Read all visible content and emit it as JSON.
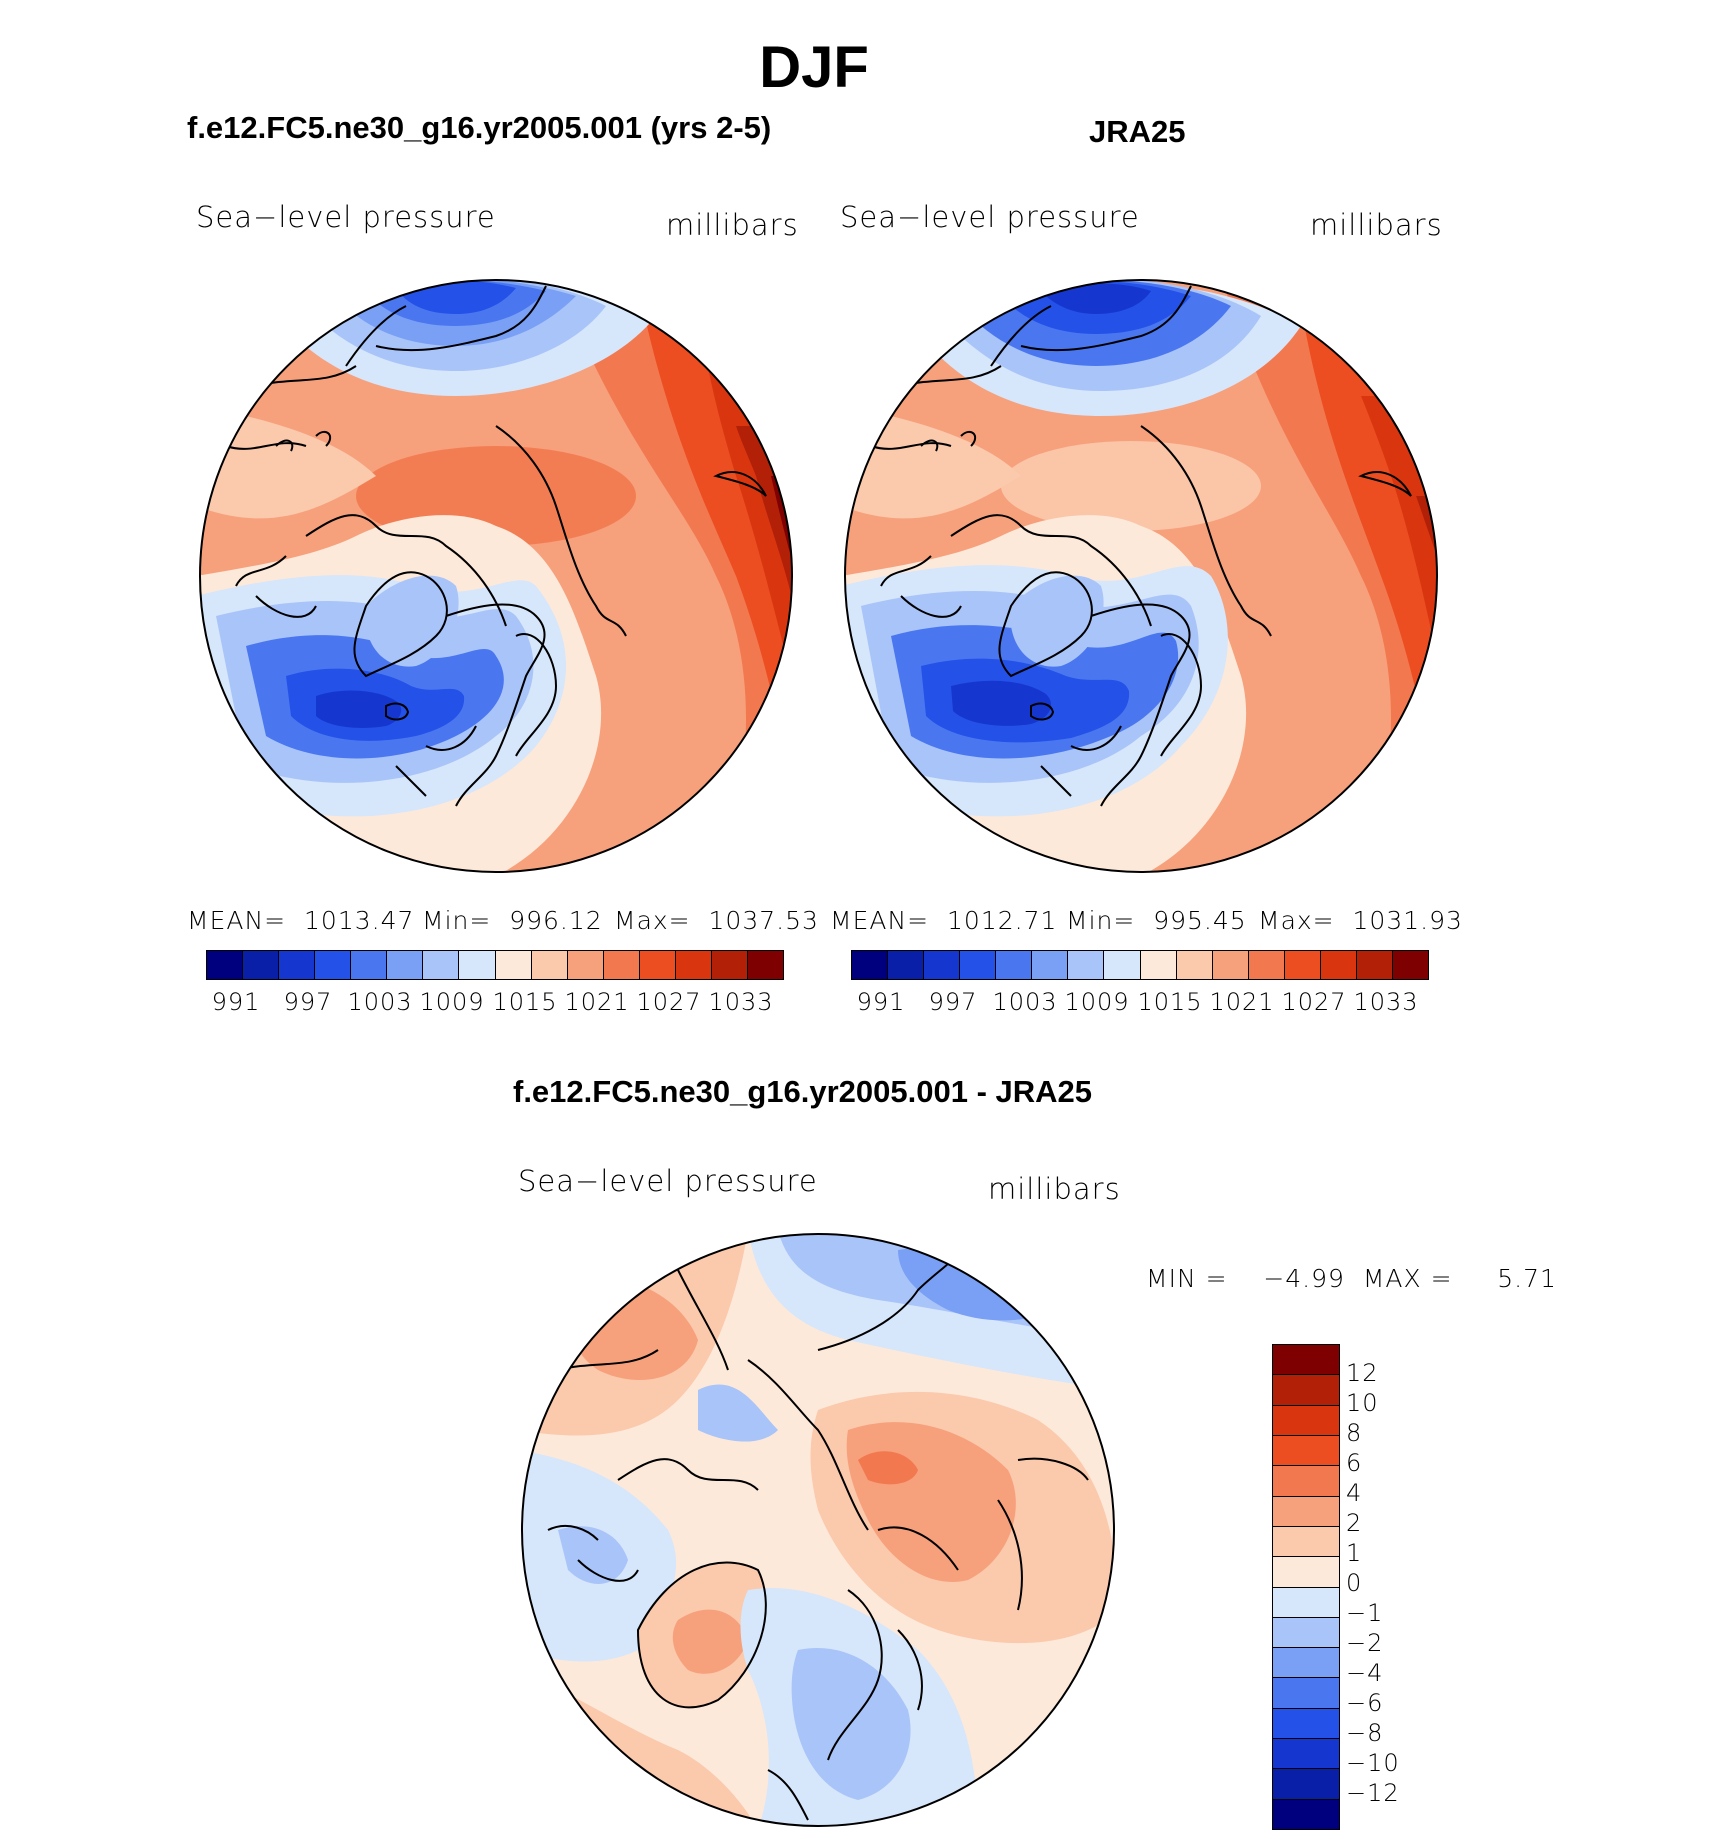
{
  "title": "DJF",
  "panels": [
    {
      "title": "f.e12.FC5.ne30_g16.yr2005.001 (yrs 2-5)",
      "left_label": "Sea−level pressure",
      "right_label": "millibars",
      "stats": {
        "mean": "MEAN=  1013.47",
        "min": "Min=  996.12",
        "max": "Max=  1037.53"
      }
    },
    {
      "title": "JRA25",
      "left_label": "Sea−level pressure",
      "right_label": "millibars",
      "stats": {
        "mean": "MEAN=  1012.71",
        "min": "Min=  995.45",
        "max": "Max=  1031.93"
      }
    },
    {
      "title": "f.e12.FC5.ne30_g16.yr2005.001 - JRA25",
      "left_label": "Sea−level pressure",
      "right_label": "millibars",
      "stats": {
        "minmax": "MIN =    −4.99  MAX =     5.71"
      }
    }
  ],
  "colorbar_horizontal": {
    "labels": [
      "991",
      "997",
      "1003",
      "1009",
      "1015",
      "1021",
      "1027",
      "1033"
    ],
    "colors": [
      "#00007f",
      "#0a1fa8",
      "#1537d0",
      "#2452e8",
      "#4a77f0",
      "#7aa0f5",
      "#a9c4f8",
      "#d6e6fb",
      "#fde9da",
      "#fbc9ac",
      "#f7a07c",
      "#f2794f",
      "#ec4e22",
      "#d93610",
      "#b32008",
      "#7f0000"
    ]
  },
  "colorbar_vertical": {
    "labels": [
      "12",
      "10",
      "8",
      "6",
      "4",
      "2",
      "1",
      "0",
      "−1",
      "−2",
      "−4",
      "−6",
      "−8",
      "−10",
      "−12"
    ],
    "colors": [
      "#7f0000",
      "#b32008",
      "#d93610",
      "#ec4e22",
      "#f2794f",
      "#f7a07c",
      "#fbc9ac",
      "#fde9da",
      "#d6e6fb",
      "#a9c4f8",
      "#7aa0f5",
      "#4a77f0",
      "#2452e8",
      "#1537d0",
      "#0a1fa8",
      "#00007f"
    ]
  }
}
